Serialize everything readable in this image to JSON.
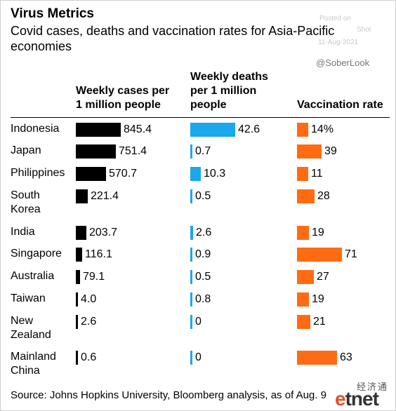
{
  "title": "Virus Metrics",
  "subtitle": "Covid cases, deaths and vaccination rates for Asia-Pacific economies",
  "watermark": {
    "posted_on": "Posted on",
    "shot": "Shot",
    "date": "11-Aug-2021",
    "handle": "@SoberLook"
  },
  "source": "Source: Johns Hopkins University, Bloomberg analysis, as of Aug. 9",
  "logo": {
    "chinese": "经济通",
    "text": "etnet"
  },
  "colors": {
    "cases": "#000000",
    "deaths": "#1aa7ee",
    "vaccination": "#ff6b12"
  },
  "chart_data": {
    "type": "bar",
    "categories": [
      "Indonesia",
      "Japan",
      "Philippines",
      "South Korea",
      "India",
      "Singapore",
      "Australia",
      "Taiwan",
      "New Zealand",
      "Mainland China"
    ],
    "category_lines": [
      [
        "Indonesia"
      ],
      [
        "Japan"
      ],
      [
        "Philippines"
      ],
      [
        "South",
        "Korea"
      ],
      [
        "India"
      ],
      [
        "Singapore"
      ],
      [
        "Australia"
      ],
      [
        "Taiwan"
      ],
      [
        "New",
        "Zealand"
      ],
      [
        "Mainland",
        "China"
      ]
    ],
    "series": [
      {
        "name": "Weekly cases per 1 million people",
        "header_lines": [
          "Weekly cases per",
          "1 million people"
        ],
        "values": [
          845.4,
          751.4,
          570.7,
          221.4,
          203.7,
          116.1,
          79.1,
          4.0,
          2.6,
          0.6
        ],
        "labels": [
          "845.4",
          "751.4",
          "570.7",
          "221.4",
          "203.7",
          "116.1",
          "79.1",
          "4.0",
          "2.6",
          "0.6"
        ]
      },
      {
        "name": "Weekly deaths per 1 million people",
        "header_lines": [
          "Weekly deaths",
          "per 1 million",
          "people"
        ],
        "values": [
          42.6,
          0.7,
          10.3,
          0.5,
          2.6,
          0.9,
          0.5,
          0.8,
          0,
          0
        ],
        "labels": [
          "42.6",
          "0.7",
          "10.3",
          "0.5",
          "2.6",
          "0.9",
          "0.5",
          "0.8",
          "0",
          "0"
        ]
      },
      {
        "name": "Vaccination rate",
        "header_lines": [
          "Vaccination rate"
        ],
        "values": [
          14,
          39,
          11,
          28,
          19,
          71,
          27,
          19,
          21,
          63
        ],
        "labels": [
          "14%",
          "39",
          "11",
          "28",
          "19",
          "71",
          "27",
          "19",
          "21",
          "63"
        ]
      }
    ]
  }
}
